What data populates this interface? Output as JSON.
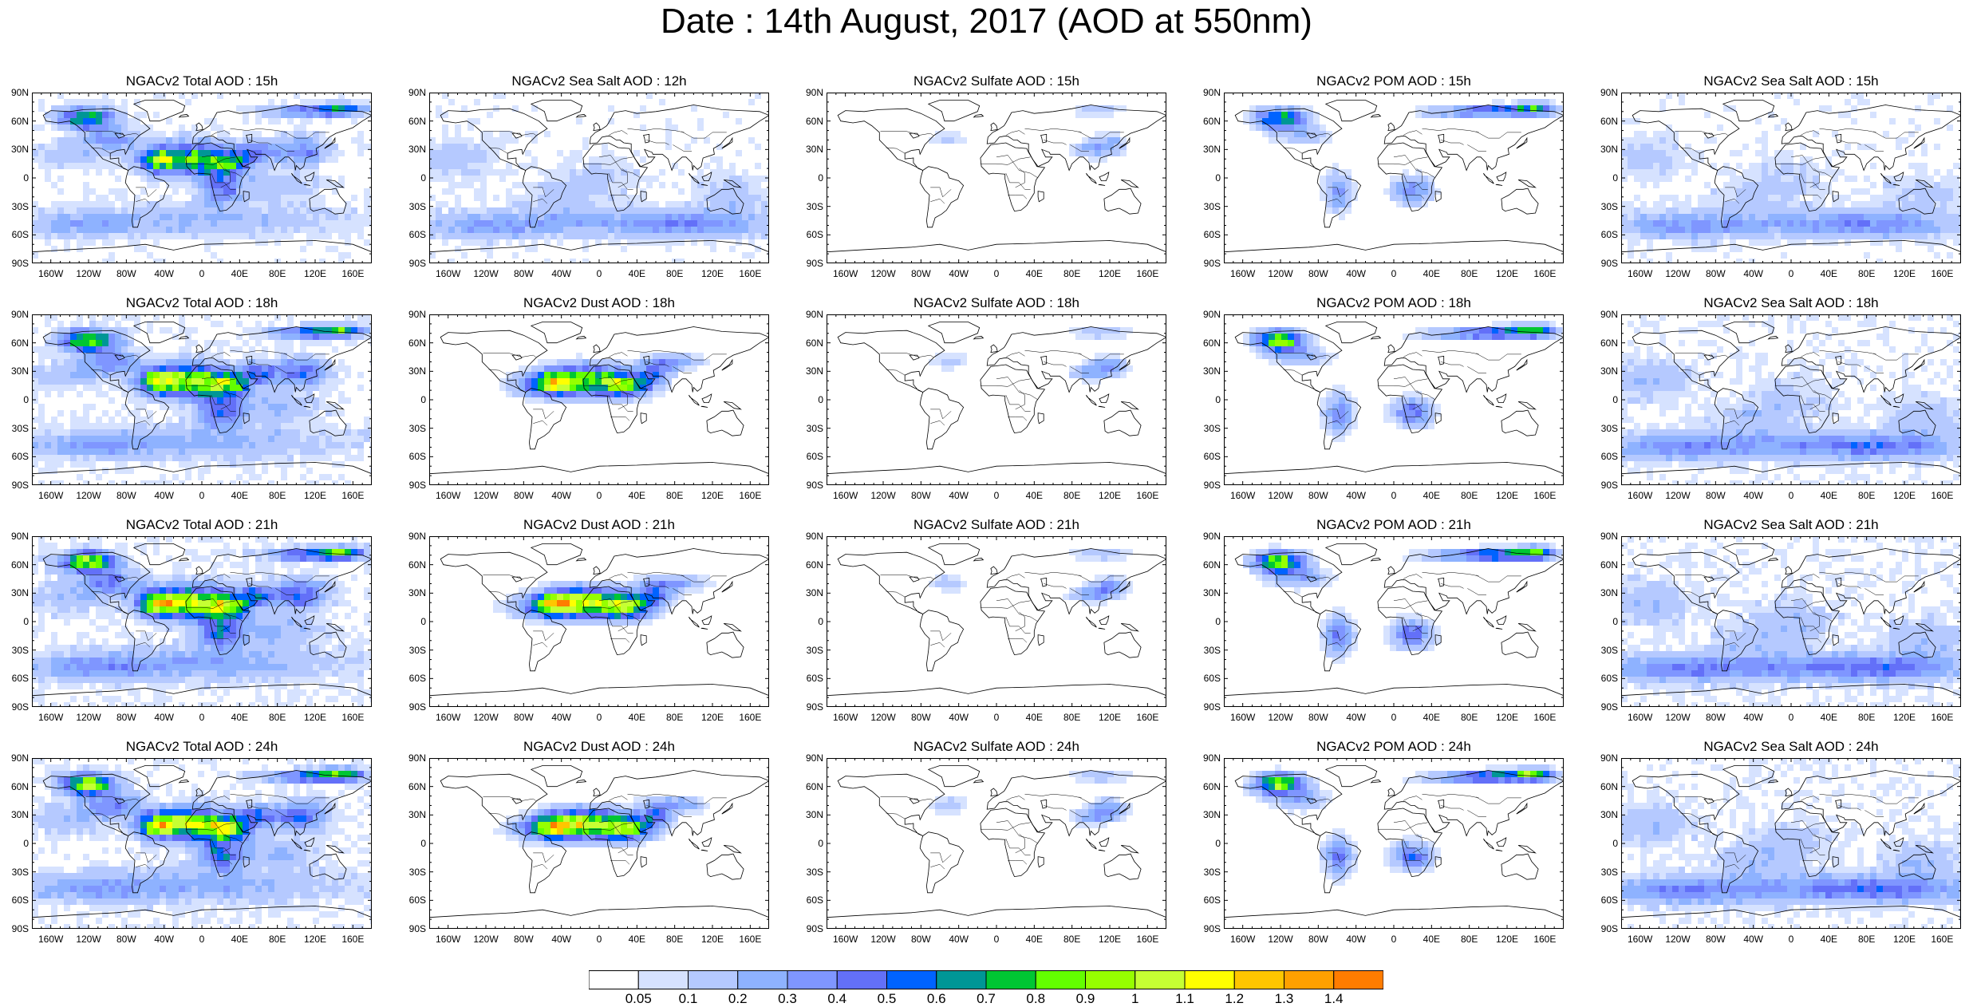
{
  "title": "Date : 14th August, 2017 (AOD at 550nm)",
  "panels": [
    [
      "NGACv2 Total AOD : 15h",
      "NGACv2 Sea Salt  AOD : 12h",
      "NGACv2 Sulfate AOD : 15h",
      "NGACv2 POM AOD : 15h",
      "NGACv2 Sea Salt AOD : 15h"
    ],
    [
      "NGACv2 Total AOD : 18h",
      "NGACv2 Dust AOD : 18h",
      "NGACv2 Sulfate AOD : 18h",
      "NGACv2 POM AOD : 18h",
      "NGACv2 Sea Salt AOD : 18h"
    ],
    [
      "NGACv2 Total AOD : 21h",
      "NGACv2 Dust AOD : 21h",
      "NGACv2 Sulfate AOD : 21h",
      "NGACv2 POM AOD : 21h",
      "NGACv2 Sea Salt AOD : 21h"
    ],
    [
      "NGACv2 Total AOD : 24h",
      "NGACv2 Dust AOD : 24h",
      "NGACv2 Sulfate AOD : 24h",
      "NGACv2 POM AOD : 24h",
      "NGACv2 Sea Salt  AOD : 24h"
    ]
  ],
  "lat_labels": [
    "90N",
    "60N",
    "30N",
    "0",
    "30S",
    "60S",
    "90S"
  ],
  "lon_labels": [
    "160W",
    "120W",
    "80W",
    "40W",
    "0",
    "40E",
    "80E",
    "120E",
    "160E"
  ],
  "colorbar": {
    "labels": [
      "0.05",
      "0.1",
      "0.2",
      "0.3",
      "0.4",
      "0.5",
      "0.6",
      "0.7",
      "0.8",
      "0.9",
      "1",
      "1.1",
      "1.2",
      "1.3",
      "1.4"
    ],
    "colors": [
      "#ffffff",
      "#d6e2ff",
      "#b5c9ff",
      "#8eb2ff",
      "#7f96ff",
      "#6370f8",
      "#0063ff",
      "#009696",
      "#00c633",
      "#63ff00",
      "#96ff00",
      "#c6ff33",
      "#ffff00",
      "#ffc600",
      "#ffa000",
      "#ff7c00",
      "#ff1900"
    ]
  }
}
